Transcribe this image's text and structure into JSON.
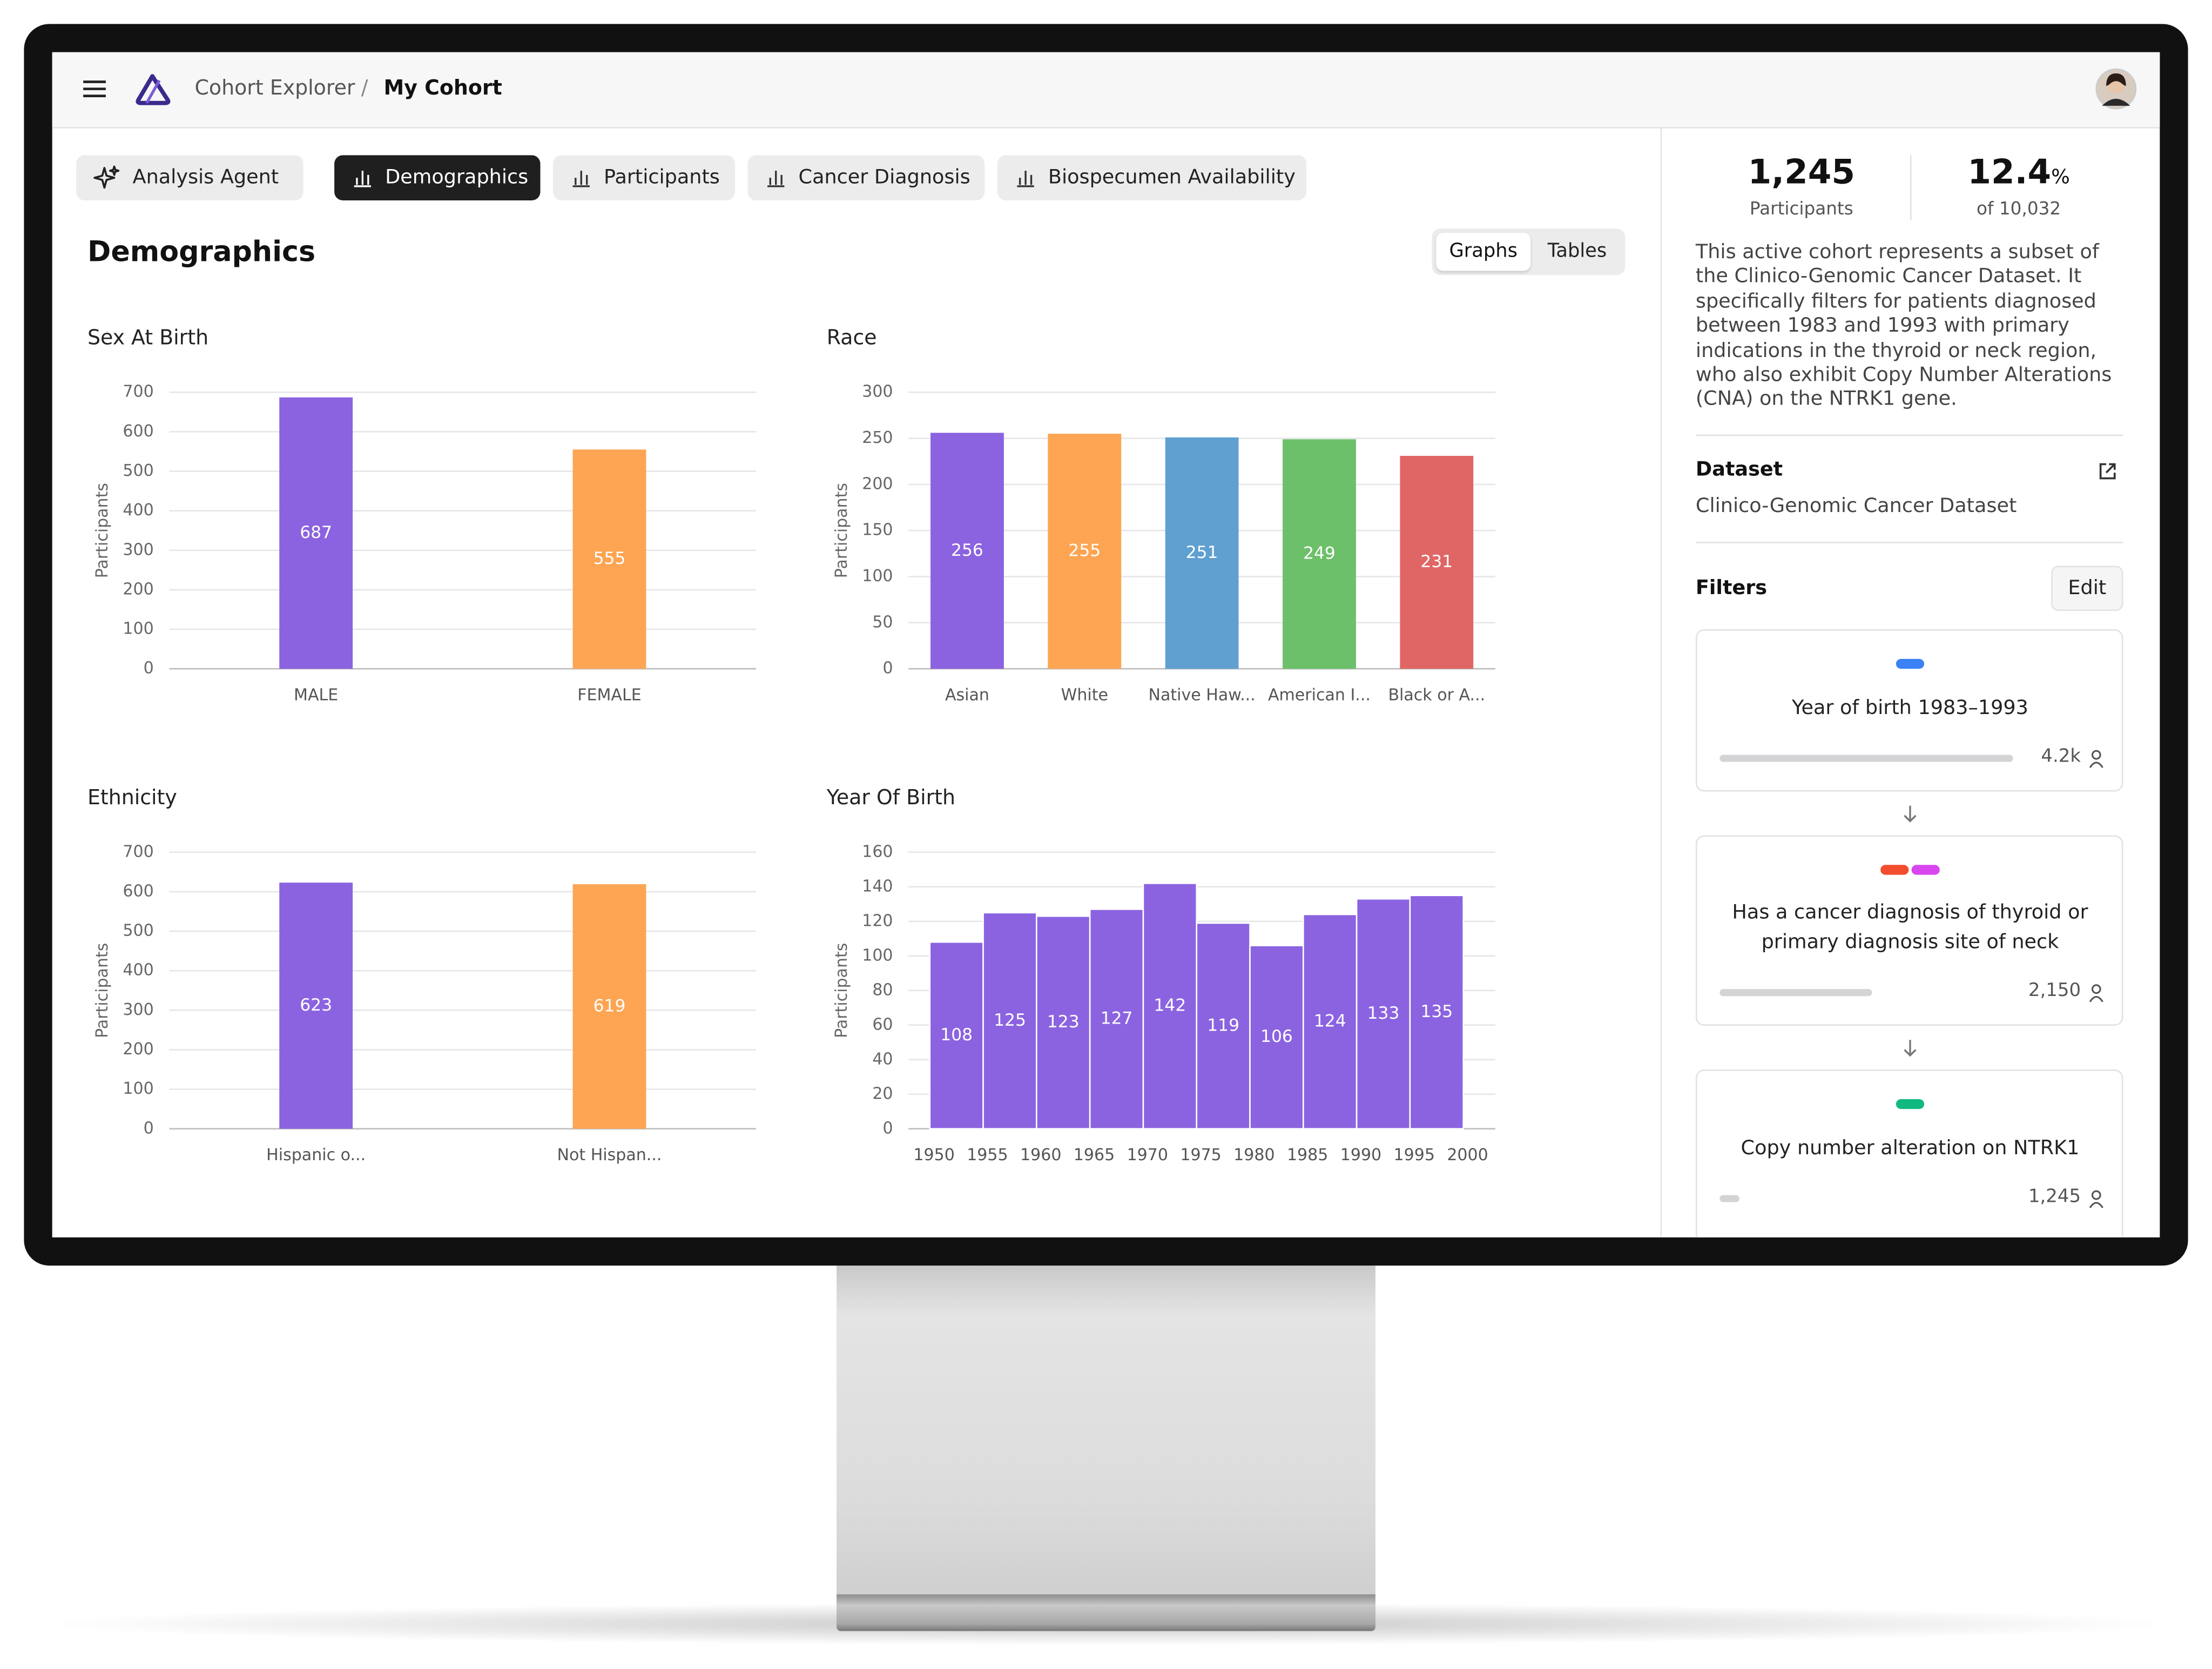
{
  "header": {
    "breadcrumb": [
      "Cohort Explorer",
      "My Cohort"
    ],
    "separator": "/"
  },
  "tabs": [
    {
      "label": "Analysis Agent",
      "active": false
    },
    {
      "label": "Demographics",
      "active": true
    },
    {
      "label": "Participants",
      "active": false
    },
    {
      "label": "Cancer Diagnosis",
      "active": false
    },
    {
      "label": "Biospecumen Availability",
      "active": false
    }
  ],
  "page_title": "Demographics",
  "view_toggle": [
    {
      "label": "Graphs",
      "active": true
    },
    {
      "label": "Tables",
      "active": false
    }
  ],
  "chart_data": [
    {
      "type": "bar",
      "title": "Sex At Birth",
      "y_label": "Participants",
      "categories": [
        "MALE",
        "FEMALE"
      ],
      "values": [
        687,
        555
      ],
      "colors": [
        "#8b63e0",
        "#fda553"
      ],
      "ylim": [
        0,
        700
      ],
      "yticks": [
        0,
        100,
        200,
        300,
        400,
        500,
        600,
        700
      ],
      "grid": true
    },
    {
      "type": "bar",
      "title": "Race",
      "y_label": "Participants",
      "categories": [
        "Asian",
        "White",
        "Native Haw...",
        "American I...",
        "Black or A..."
      ],
      "values": [
        256,
        255,
        251,
        249,
        231
      ],
      "colors": [
        "#8b63e0",
        "#fda553",
        "#5fa0d0",
        "#6cc06a",
        "#e06666"
      ],
      "ylim": [
        0,
        300
      ],
      "yticks": [
        0,
        50,
        100,
        150,
        200,
        250,
        300
      ],
      "grid": true
    },
    {
      "type": "bar",
      "title": "Ethnicity",
      "y_label": "Participants",
      "categories": [
        "Hispanic o...",
        "Not Hispan..."
      ],
      "values": [
        623,
        619
      ],
      "colors": [
        "#8b63e0",
        "#fda553"
      ],
      "ylim": [
        0,
        700
      ],
      "yticks": [
        0,
        100,
        200,
        300,
        400,
        500,
        600,
        700
      ],
      "grid": true
    },
    {
      "type": "histogram",
      "title": "Year Of Birth",
      "y_label": "Participants",
      "bins": [
        1950,
        1955,
        1960,
        1965,
        1970,
        1975,
        1980,
        1985,
        1990,
        1995,
        2000
      ],
      "values": [
        108,
        125,
        123,
        127,
        142,
        119,
        106,
        124,
        133,
        135
      ],
      "color": "#8b63e0",
      "xlim": [
        1948,
        2003
      ],
      "xticks": [
        1950,
        1955,
        1960,
        1965,
        1970,
        1975,
        1980,
        1985,
        1990,
        1995,
        2000
      ],
      "ylim": [
        0,
        160
      ],
      "yticks": [
        0,
        20,
        40,
        60,
        80,
        100,
        120,
        140,
        160
      ],
      "grid": true
    }
  ],
  "sidebar": {
    "stats": [
      {
        "value": "1,245",
        "label": "Participants"
      },
      {
        "value": "12.4",
        "unit": "%",
        "label": "of 10,032"
      }
    ],
    "description": "This active cohort represents a subset of the Clinico-Genomic Cancer Dataset. It specifically filters for patients diagnosed between 1983 and 1993 with primary indications in the thyroid or neck region, who also exhibit Copy Number Alterations (CNA) on the NTRK1 gene.",
    "dataset": {
      "heading": "Dataset",
      "name": "Clinico-Genomic Cancer Dataset"
    },
    "filters": {
      "heading": "Filters",
      "edit": "Edit",
      "items": [
        {
          "label": "Year of birth 1983–1993",
          "count": "4.2k",
          "colors": [
            "#3b82f6"
          ]
        },
        {
          "label": "Has a cancer diagnosis of thyroid or primary diagnosis site of neck",
          "count": "2,150",
          "colors": [
            "#f24d2e",
            "#d946ef"
          ]
        },
        {
          "label": "Copy number alteration on NTRK1",
          "count": "1,245",
          "colors": [
            "#10b981"
          ]
        }
      ]
    }
  }
}
